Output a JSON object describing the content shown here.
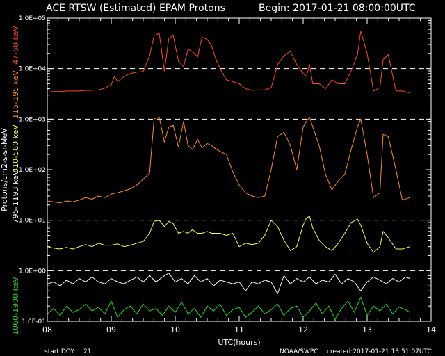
{
  "header": {
    "title": "ACE RTSW (Estimated) EPAM Protons",
    "begin": "Begin: 2017-01-21  08:00:00UTC"
  },
  "footer": {
    "start_doy_label": "start DOY:",
    "start_doy_value": "21",
    "source": "NOAA/SWPC",
    "created": "created:2017-01-21  13:51:07UTC"
  },
  "colors": {
    "background": "#000000",
    "axis": "#ffffff",
    "grid": "#ffffff",
    "ch_47_68": "#ff4a1c",
    "ch_115_195": "#ff8c1a",
    "ch_310_580": "#ffff40",
    "ch_795_1193": "#ffffff",
    "ch_1060_1900": "#22dd22"
  },
  "chart_data": {
    "type": "line",
    "title": "ACE RTSW (Estimated) EPAM Protons",
    "xlabel": "UTC(hours)",
    "ylabel": "Protons/cm2-s-sr-MeV",
    "xlim": [
      8,
      14
    ],
    "ylim": [
      0.1,
      100000
    ],
    "y_scale": "log",
    "x_ticks": [
      "08",
      "09",
      "10",
      "11",
      "12",
      "13",
      "14"
    ],
    "y_ticks": [
      "1.0E-01",
      "1.0E+00",
      "1.0E+01",
      "1.0E+02",
      "1.0E+03",
      "1.0E+04",
      "1.0E+05"
    ],
    "dashed_gridlines": [
      1,
      10,
      1000,
      10000
    ],
    "legend": "left-vertical",
    "series": [
      {
        "name": "47-68 keV",
        "color": "#ff4a1c",
        "x": [
          8.0,
          8.1,
          8.2,
          8.3,
          8.4,
          8.5,
          8.6,
          8.7,
          8.8,
          8.9,
          9.0,
          9.05,
          9.1,
          9.2,
          9.3,
          9.4,
          9.5,
          9.6,
          9.67,
          9.75,
          9.83,
          9.9,
          9.97,
          10.05,
          10.13,
          10.2,
          10.27,
          10.35,
          10.42,
          10.5,
          10.57,
          10.63,
          10.7,
          10.8,
          10.9,
          11.0,
          11.1,
          11.2,
          11.3,
          11.4,
          11.5,
          11.6,
          11.7,
          11.8,
          11.9,
          12.0,
          12.05,
          12.1,
          12.15,
          12.25,
          12.35,
          12.45,
          12.55,
          12.65,
          12.75,
          12.85,
          12.9,
          13.0,
          13.1,
          13.2,
          13.25,
          13.33,
          13.45,
          13.55,
          13.67
        ],
        "values": [
          3400,
          3500,
          3500,
          3600,
          3600,
          3600,
          3700,
          3700,
          3800,
          4100,
          4800,
          7000,
          5500,
          7000,
          8000,
          8500,
          8800,
          18000,
          45000,
          50000,
          9000,
          40000,
          45000,
          14000,
          11000,
          24000,
          22000,
          17000,
          42000,
          38000,
          28000,
          16000,
          10000,
          6000,
          5500,
          5000,
          4000,
          3700,
          3800,
          3800,
          4200,
          12000,
          18000,
          22000,
          12000,
          8000,
          7000,
          12000,
          5000,
          5000,
          4000,
          6000,
          5000,
          5000,
          9000,
          19000,
          55000,
          20000,
          3600,
          4200,
          15000,
          19000,
          3600,
          3600,
          3300
        ]
      },
      {
        "name": "115-195 keV",
        "color": "#ff8c1a",
        "x": [
          8.0,
          8.1,
          8.2,
          8.3,
          8.4,
          8.5,
          8.6,
          8.7,
          8.8,
          8.9,
          9.0,
          9.1,
          9.2,
          9.3,
          9.4,
          9.5,
          9.6,
          9.67,
          9.75,
          9.83,
          9.9,
          9.97,
          10.05,
          10.13,
          10.2,
          10.27,
          10.35,
          10.42,
          10.5,
          10.57,
          10.63,
          10.7,
          10.8,
          10.9,
          11.0,
          11.1,
          11.2,
          11.3,
          11.4,
          11.5,
          11.6,
          11.7,
          11.8,
          11.9,
          12.0,
          12.05,
          12.1,
          12.15,
          12.25,
          12.35,
          12.45,
          12.55,
          12.65,
          12.75,
          12.85,
          12.9,
          13.0,
          13.1,
          13.2,
          13.25,
          13.33,
          13.45,
          13.55,
          13.67
        ],
        "values": [
          24,
          23,
          22,
          24,
          23,
          25,
          28,
          26,
          30,
          28,
          33,
          35,
          38,
          42,
          50,
          65,
          85,
          1000,
          1100,
          350,
          700,
          750,
          280,
          900,
          300,
          250,
          400,
          270,
          330,
          300,
          260,
          230,
          200,
          90,
          50,
          35,
          30,
          28,
          30,
          100,
          450,
          550,
          300,
          100,
          700,
          900,
          1100,
          700,
          300,
          80,
          40,
          60,
          80,
          250,
          700,
          1000,
          200,
          28,
          35,
          500,
          450,
          100,
          25,
          28
        ]
      },
      {
        "name": "310-580 keV",
        "color": "#ffff40",
        "x": [
          8.0,
          8.1,
          8.2,
          8.3,
          8.4,
          8.5,
          8.6,
          8.7,
          8.8,
          8.9,
          9.0,
          9.1,
          9.2,
          9.3,
          9.4,
          9.5,
          9.6,
          9.67,
          9.75,
          9.83,
          9.9,
          9.97,
          10.05,
          10.13,
          10.2,
          10.27,
          10.35,
          10.42,
          10.5,
          10.57,
          10.63,
          10.7,
          10.8,
          10.9,
          11.0,
          11.1,
          11.2,
          11.3,
          11.4,
          11.5,
          11.6,
          11.7,
          11.8,
          11.9,
          12.0,
          12.05,
          12.1,
          12.15,
          12.25,
          12.35,
          12.45,
          12.55,
          12.65,
          12.75,
          12.85,
          12.9,
          13.0,
          13.1,
          13.2,
          13.25,
          13.33,
          13.45,
          13.55,
          13.67
        ],
        "values": [
          3.0,
          2.8,
          2.7,
          2.9,
          2.7,
          3.0,
          3.3,
          3.0,
          3.5,
          3.2,
          3.2,
          3.4,
          3.0,
          3.2,
          3.5,
          3.8,
          5.5,
          9.5,
          10.0,
          7.5,
          9.5,
          8.5,
          5.5,
          6.0,
          5.5,
          6.5,
          5.5,
          5.5,
          6.0,
          5.5,
          5.5,
          5.5,
          5.0,
          5.5,
          3.0,
          3.5,
          3.3,
          3.5,
          5.0,
          10.0,
          7.5,
          4.0,
          2.5,
          3.0,
          8.0,
          11.0,
          12.0,
          7.0,
          4.0,
          3.0,
          2.5,
          3.5,
          5.5,
          9.0,
          10.5,
          8.0,
          3.5,
          2.3,
          3.0,
          6.0,
          4.5,
          2.7,
          2.7,
          3.0
        ]
      },
      {
        "name": "795-1193 keV",
        "color": "#ffffff",
        "x": [
          8.0,
          8.1,
          8.2,
          8.3,
          8.4,
          8.5,
          8.6,
          8.7,
          8.8,
          8.9,
          9.0,
          9.1,
          9.2,
          9.3,
          9.4,
          9.5,
          9.6,
          9.7,
          9.8,
          9.9,
          10.0,
          10.1,
          10.2,
          10.3,
          10.4,
          10.5,
          10.6,
          10.7,
          10.8,
          10.9,
          11.0,
          11.1,
          11.2,
          11.3,
          11.4,
          11.5,
          11.6,
          11.7,
          11.8,
          11.9,
          12.0,
          12.1,
          12.2,
          12.3,
          12.4,
          12.5,
          12.6,
          12.7,
          12.8,
          12.9,
          13.0,
          13.1,
          13.2,
          13.3,
          13.4,
          13.5,
          13.6,
          13.67
        ],
        "values": [
          0.55,
          0.6,
          0.5,
          0.65,
          0.55,
          0.7,
          0.6,
          0.75,
          0.6,
          0.55,
          0.7,
          0.6,
          0.55,
          0.65,
          0.75,
          0.6,
          0.8,
          0.6,
          0.75,
          0.9,
          0.6,
          0.7,
          0.55,
          0.8,
          0.6,
          0.7,
          0.5,
          0.65,
          0.6,
          0.55,
          0.6,
          0.4,
          0.6,
          0.55,
          0.65,
          0.6,
          0.35,
          0.8,
          0.55,
          0.7,
          0.6,
          0.75,
          0.55,
          0.65,
          0.6,
          0.85,
          0.55,
          0.7,
          0.6,
          0.4,
          0.6,
          0.75,
          0.65,
          0.55,
          0.7,
          0.6,
          0.75,
          0.7
        ]
      },
      {
        "name": "1060-1900 keV",
        "color": "#22dd22",
        "x": [
          8.0,
          8.1,
          8.2,
          8.3,
          8.4,
          8.5,
          8.6,
          8.7,
          8.8,
          8.9,
          9.0,
          9.1,
          9.2,
          9.3,
          9.4,
          9.5,
          9.6,
          9.7,
          9.8,
          9.9,
          10.0,
          10.1,
          10.2,
          10.3,
          10.4,
          10.5,
          10.6,
          10.7,
          10.8,
          10.9,
          11.0,
          11.1,
          11.2,
          11.3,
          11.4,
          11.5,
          11.6,
          11.7,
          11.8,
          11.9,
          12.0,
          12.1,
          12.2,
          12.3,
          12.4,
          12.5,
          12.6,
          12.7,
          12.8,
          12.9,
          13.0,
          13.1,
          13.2,
          13.3,
          13.4,
          13.5,
          13.6,
          13.67
        ],
        "values": [
          0.14,
          0.18,
          0.13,
          0.2,
          0.15,
          0.17,
          0.22,
          0.16,
          0.19,
          0.14,
          0.25,
          0.12,
          0.17,
          0.2,
          0.14,
          0.22,
          0.16,
          0.18,
          0.13,
          0.2,
          0.15,
          0.24,
          0.14,
          0.18,
          0.12,
          0.2,
          0.16,
          0.22,
          0.13,
          0.17,
          0.19,
          0.12,
          0.15,
          0.2,
          0.14,
          0.17,
          0.22,
          0.13,
          0.18,
          0.2,
          0.12,
          0.16,
          0.23,
          0.14,
          0.2,
          0.11,
          0.18,
          0.25,
          0.15,
          0.3,
          0.13,
          0.2,
          0.16,
          0.22,
          0.14,
          0.19,
          0.17,
          0.15
        ]
      }
    ]
  }
}
